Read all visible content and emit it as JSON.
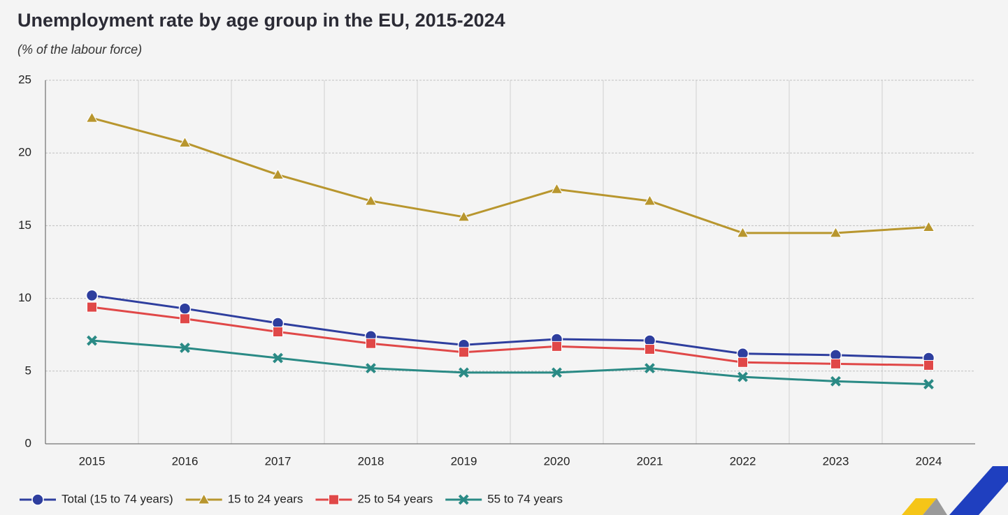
{
  "chart_data": {
    "type": "line",
    "title": "Unemployment rate by age group in the EU, 2015-2024",
    "subtitle": "(% of the labour force)",
    "categories": [
      "2015",
      "2016",
      "2017",
      "2018",
      "2019",
      "2020",
      "2021",
      "2022",
      "2023",
      "2024"
    ],
    "series": [
      {
        "name": "Total (15 to 74 years)",
        "color": "#2e3e9e",
        "marker": "circle",
        "values": [
          10.2,
          9.3,
          8.3,
          7.4,
          6.8,
          7.2,
          7.1,
          6.2,
          6.1,
          5.9
        ]
      },
      {
        "name": "15 to 24 years",
        "color": "#b8962e",
        "marker": "triangle",
        "values": [
          22.4,
          20.7,
          18.5,
          16.7,
          15.6,
          17.5,
          16.7,
          14.5,
          14.5,
          14.9
        ]
      },
      {
        "name": "25 to 54 years",
        "color": "#e04848",
        "marker": "square",
        "values": [
          9.4,
          8.6,
          7.7,
          6.9,
          6.3,
          6.7,
          6.5,
          5.6,
          5.5,
          5.4
        ]
      },
      {
        "name": "55 to 74 years",
        "color": "#2a8a85",
        "marker": "cross",
        "values": [
          7.1,
          6.6,
          5.9,
          5.2,
          4.9,
          4.9,
          5.2,
          4.6,
          4.3,
          4.1
        ]
      }
    ],
    "ylim": [
      0,
      25
    ],
    "yticks": [
      0,
      5,
      10,
      15,
      20,
      25
    ],
    "grid": true,
    "legend": "bottom"
  }
}
